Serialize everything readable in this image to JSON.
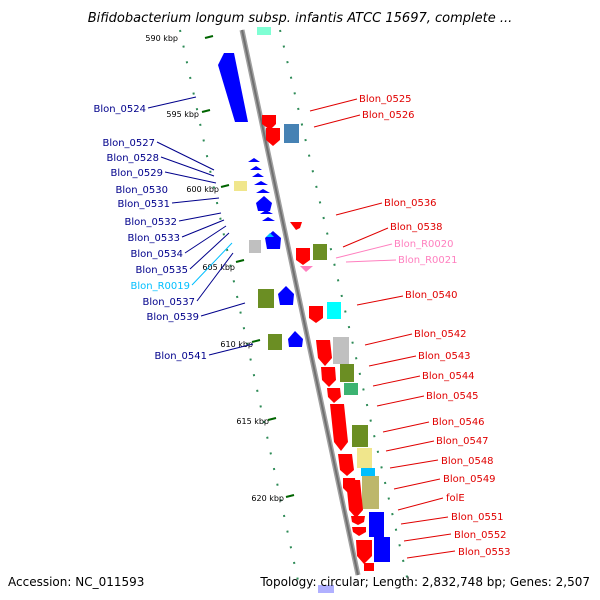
{
  "title": "Bifidobacterium longum subsp. infantis ATCC 15697, complete ...",
  "footer": {
    "accession": "Accession: NC_011593",
    "summary": "Topology: circular; Length: 2,832,748 bp; Genes: 2,507"
  },
  "colors": {
    "forward_cds": "#0000ff",
    "reverse_cds": "#ff0000",
    "trna_forward": "#00bfff",
    "trna_reverse": "#ff7fbf",
    "feature_olive": "#6b8e23",
    "feature_khaki": "#f0e68c",
    "feature_cyan": "#00ffff",
    "feature_steelblue": "#4682b4",
    "feature_green": "#3cb371",
    "feature_gray": "#c0c0c0",
    "backbone": "#808080",
    "scale": "#006400"
  },
  "scale_labels": [
    "590 kbp",
    "595 kbp",
    "600 kbp",
    "605 kbp",
    "610 kbp",
    "615 kbp",
    "620 kbp"
  ],
  "left_labels": [
    "Blon_0524",
    "Blon_0527",
    "Blon_0528",
    "Blon_0529",
    "Blon_0530",
    "Blon_0531",
    "Blon_0532",
    "Blon_0533",
    "Blon_0534",
    "Blon_0535",
    "Blon_R0019",
    "Blon_0537",
    "Blon_0539",
    "Blon_0541"
  ],
  "right_labels": [
    "Blon_0525",
    "Blon_0526",
    "Blon_0536",
    "Blon_0538",
    "Blon_R0020",
    "Blon_R0021",
    "Blon_0540",
    "Blon_0542",
    "Blon_0543",
    "Blon_0544",
    "Blon_0545",
    "Blon_0546",
    "Blon_0547",
    "Blon_0548",
    "Blon_0549",
    "folE",
    "Blon_0551",
    "Blon_0552",
    "Blon_0553"
  ]
}
